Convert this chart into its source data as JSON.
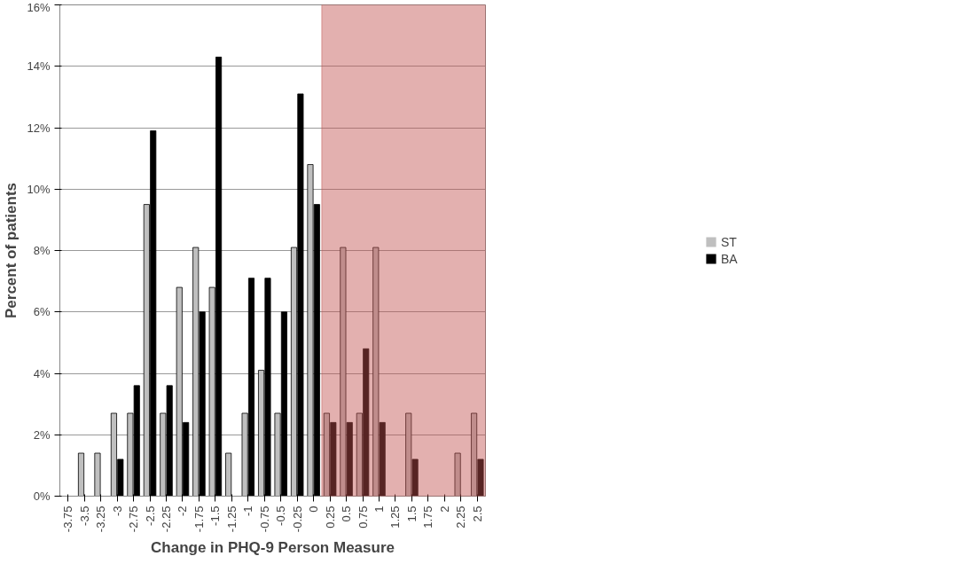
{
  "chart_data": {
    "type": "bar",
    "xlabel": "Change in PHQ-9 Person Measure",
    "ylabel": "Percent of patients",
    "categories": [
      "-3.75",
      "-3.5",
      "-3.25",
      "-3",
      "-2.75",
      "-2.5",
      "-2.25",
      "-2",
      "-1.75",
      "-1.5",
      "-1.25",
      "-1",
      "-0.75",
      "-0.5",
      "-0.25",
      "0",
      "0.25",
      "0.5",
      "0.75",
      "1",
      "1.25",
      "1.5",
      "1.75",
      "2",
      "2.25",
      "2.5"
    ],
    "series": [
      {
        "name": "ST",
        "color": "#bfbfbf",
        "values": [
          0,
          1.4,
          1.4,
          2.7,
          2.7,
          9.5,
          2.7,
          6.8,
          8.1,
          6.8,
          1.4,
          2.7,
          4.1,
          2.7,
          8.1,
          10.8,
          2.7,
          8.1,
          2.7,
          8.1,
          0,
          2.7,
          0,
          0,
          1.4,
          2.7
        ]
      },
      {
        "name": "BA",
        "color": "#000000",
        "values": [
          0,
          0,
          0,
          1.2,
          3.6,
          11.9,
          3.6,
          2.4,
          6.0,
          14.3,
          0,
          7.1,
          7.1,
          6.0,
          13.1,
          9.5,
          2.4,
          2.4,
          4.8,
          2.4,
          0,
          1.2,
          0,
          0,
          0,
          1.2
        ]
      }
    ],
    "ylim": [
      0,
      16
    ],
    "yticks": [
      {
        "value": 0,
        "label": "0%"
      },
      {
        "value": 2,
        "label": "2%"
      },
      {
        "value": 4,
        "label": "4%"
      },
      {
        "value": 6,
        "label": "6%"
      },
      {
        "value": 8,
        "label": "8%"
      },
      {
        "value": 10,
        "label": "10%"
      },
      {
        "value": 12,
        "label": "12%"
      },
      {
        "value": 14,
        "label": "14%"
      },
      {
        "value": 16,
        "label": "16%"
      }
    ],
    "bands": [
      {
        "axis": "x",
        "from": "0.25",
        "to": "2.5",
        "color": "#c0504d"
      }
    ],
    "grid": "y",
    "legend": "right"
  }
}
